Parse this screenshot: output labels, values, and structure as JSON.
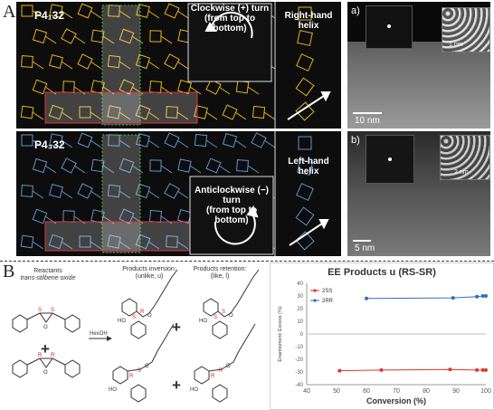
{
  "panel_a": {
    "letter": "A",
    "top": {
      "space_group": "P4₁32",
      "turn_note": [
        "Clockwise (+) turn",
        "(from top to bottom)"
      ],
      "helix_note": [
        "Right-hand",
        "helix"
      ],
      "color": "#e8b21c"
    },
    "bottom": {
      "space_group": "P4₃32",
      "turn_note": [
        "Anticlockwise (−) turn",
        "(from top to bottom)"
      ],
      "helix_note": [
        "Left-hand",
        "helix"
      ],
      "color": "#5f95c9"
    },
    "tem_a": {
      "letter": "a)",
      "scale": "10 nm",
      "inset_scale": "1 nm"
    },
    "tem_b": {
      "letter": "b)",
      "scale": "5 nm",
      "inset_scale": "2 nm"
    }
  },
  "panel_b": {
    "letter": "B",
    "reactants_title": "Reactants",
    "reactants_sub": "trans-stilbene oxide",
    "inversion_title": "Products inversion:",
    "inversion_sub": "(unlike, u)",
    "retention_title": "Products retention:",
    "retention_sub": "(like, l)",
    "reagent": "HexOH",
    "stereo_s": "S",
    "stereo_r": "R",
    "ho_label": "HO",
    "o_label": "O",
    "plus": "+"
  },
  "chart_data": {
    "type": "line",
    "title": "EE Products u (RS-SR)",
    "xlabel": "Conversion (%)",
    "ylabel": "Enantiomeric Excess (%)",
    "xlim": [
      40,
      100
    ],
    "ylim": [
      -40,
      40
    ],
    "xticks": [
      40,
      50,
      60,
      70,
      80,
      90,
      100
    ],
    "yticks": [
      40,
      30,
      20,
      10,
      0,
      -10,
      -20,
      -30,
      -40
    ],
    "series": [
      {
        "name": "2SS",
        "color": "#e0342c",
        "x": [
          51,
          65,
          88,
          97,
          99,
          100
        ],
        "y": [
          -29,
          -28.5,
          -28,
          -28.5,
          -28.5,
          -28.5
        ]
      },
      {
        "name": "2RR",
        "color": "#2e6fc0",
        "x": [
          60,
          89,
          97,
          99,
          100
        ],
        "y": [
          28,
          28.5,
          29.5,
          30,
          30
        ]
      }
    ],
    "grid": false,
    "legend": "upper-left"
  }
}
